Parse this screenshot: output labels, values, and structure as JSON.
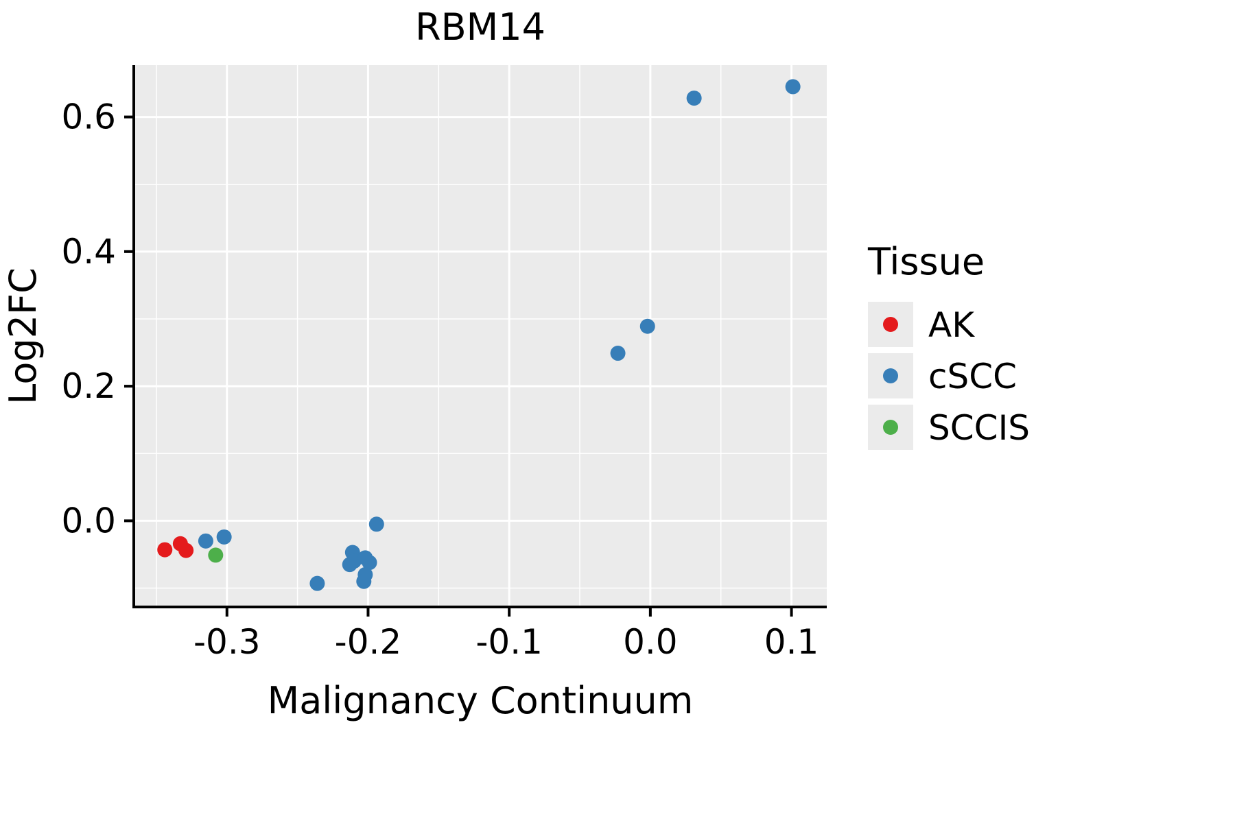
{
  "chart_data": {
    "type": "scatter",
    "title": "RBM14",
    "xlabel": "Malignancy Continuum",
    "ylabel": "Log2FC",
    "legend_title": "Tissue",
    "legend_position": "right",
    "grid": true,
    "panel_color": "#EBEBEB",
    "grid_color": "#FFFFFF",
    "xlim": [
      -0.366,
      0.125
    ],
    "ylim": [
      -0.128,
      0.677
    ],
    "xticks": [
      -0.3,
      -0.2,
      -0.1,
      0.0,
      0.1
    ],
    "xtick_labels": [
      "-0.3",
      "-0.2",
      "-0.1",
      "0.0",
      "0.1"
    ],
    "xminor": [
      -0.35,
      -0.25,
      -0.15,
      -0.05,
      0.05
    ],
    "yticks": [
      0.0,
      0.2,
      0.4,
      0.6
    ],
    "ytick_labels": [
      "0.0",
      "0.2",
      "0.4",
      "0.6"
    ],
    "yminor": [
      -0.1,
      0.1,
      0.3,
      0.5
    ],
    "series": [
      {
        "name": "AK",
        "color": "#E41A1C",
        "points": [
          [
            -0.344,
            -0.043
          ],
          [
            -0.333,
            -0.034
          ],
          [
            -0.329,
            -0.044
          ]
        ]
      },
      {
        "name": "cSCC",
        "color": "#377EB8",
        "points": [
          [
            -0.315,
            -0.03
          ],
          [
            -0.302,
            -0.024
          ],
          [
            -0.236,
            -0.093
          ],
          [
            -0.213,
            -0.065
          ],
          [
            -0.211,
            -0.047
          ],
          [
            -0.21,
            -0.06
          ],
          [
            -0.202,
            -0.055
          ],
          [
            -0.199,
            -0.062
          ],
          [
            -0.202,
            -0.08
          ],
          [
            -0.203,
            -0.09
          ],
          [
            -0.194,
            -0.005
          ],
          [
            -0.023,
            0.249
          ],
          [
            -0.002,
            0.289
          ],
          [
            0.031,
            0.628
          ],
          [
            0.101,
            0.645
          ]
        ]
      },
      {
        "name": "SCCIS",
        "color": "#4DAF4A",
        "points": [
          [
            -0.308,
            -0.051
          ]
        ]
      }
    ]
  }
}
